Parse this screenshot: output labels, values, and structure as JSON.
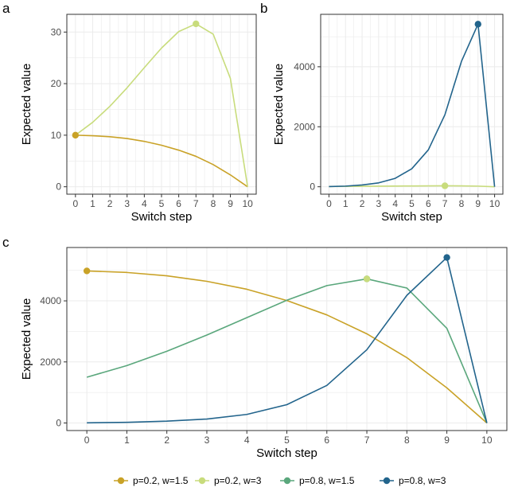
{
  "colors": {
    "p02_w15": "#c9a227",
    "p02_w3": "#c8dc7c",
    "p08_w15": "#5aa77c",
    "p08_w3": "#22648c",
    "grid": "#ebebeb",
    "panel_border": "#333333"
  },
  "legend": {
    "placement": "bottom",
    "items": [
      {
        "label": "p=0.2, w=1.5",
        "color": "#c9a227"
      },
      {
        "label": "p=0.2, w=3",
        "color": "#c8dc7c"
      },
      {
        "label": "p=0.8, w=1.5",
        "color": "#5aa77c"
      },
      {
        "label": "p=0.8, w=3",
        "color": "#22648c"
      }
    ]
  },
  "chart_data": [
    {
      "panel": "a",
      "type": "line",
      "xlabel": "Switch step",
      "ylabel": "Expected value",
      "x": [
        0,
        1,
        2,
        3,
        4,
        5,
        6,
        7,
        8,
        9,
        10
      ],
      "xlim": [
        0,
        10
      ],
      "ylim": [
        0,
        32
      ],
      "yticks": [
        0,
        10,
        20,
        30
      ],
      "grid": true,
      "series": [
        {
          "key": "p02_w15",
          "values": [
            10,
            9.9,
            9.7,
            9.35,
            8.8,
            8.05,
            7.1,
            5.9,
            4.3,
            2.3,
            0
          ],
          "highlight_index": 0
        },
        {
          "key": "p02_w3",
          "values": [
            10,
            12.5,
            15.6,
            19.2,
            23.1,
            26.9,
            30.1,
            31.6,
            29.6,
            21,
            0
          ],
          "highlight_index": 7
        }
      ]
    },
    {
      "panel": "b",
      "type": "line",
      "xlabel": "Switch step",
      "ylabel": "Expected value",
      "x": [
        0,
        1,
        2,
        3,
        4,
        5,
        6,
        7,
        8,
        9,
        10
      ],
      "xlim": [
        0,
        10
      ],
      "ylim": [
        0,
        5500
      ],
      "yticks": [
        0,
        2000,
        4000
      ],
      "grid": true,
      "series": [
        {
          "key": "p02_w3",
          "values": [
            10,
            12.5,
            15.6,
            19.2,
            23.1,
            26.9,
            30.1,
            31.6,
            29.6,
            21,
            0
          ],
          "highlight_index": 7
        },
        {
          "key": "p08_w3",
          "values": [
            5,
            21,
            60,
            130,
            280,
            600,
            1230,
            2400,
            4180,
            5420,
            0
          ],
          "highlight_index": 9
        }
      ]
    },
    {
      "panel": "c",
      "type": "line",
      "xlabel": "Switch step",
      "ylabel": "Expected value",
      "x": [
        0,
        1,
        2,
        3,
        4,
        5,
        6,
        7,
        8,
        9,
        10
      ],
      "xlim": [
        0,
        10
      ],
      "ylim": [
        0,
        5500
      ],
      "yticks": [
        0,
        2000,
        4000
      ],
      "grid": true,
      "series": [
        {
          "key": "p02_w15",
          "values": [
            4980,
            4930,
            4820,
            4640,
            4380,
            4010,
            3540,
            2920,
            2140,
            1150,
            0
          ],
          "highlight_index": 0
        },
        {
          "key": "p08_w15",
          "values": [
            1500,
            1880,
            2350,
            2880,
            3450,
            4020,
            4500,
            4720,
            4420,
            3100,
            0
          ],
          "highlight_index": 7
        },
        {
          "key": "p02_w3",
          "values": [
            null,
            null,
            null,
            null,
            null,
            null,
            null,
            4720,
            null,
            null,
            null
          ],
          "highlight_index": 7,
          "point_only": true
        },
        {
          "key": "p08_w3",
          "values": [
            5,
            21,
            60,
            130,
            280,
            600,
            1230,
            2400,
            4180,
            5420,
            0
          ],
          "highlight_index": 9
        }
      ]
    }
  ]
}
